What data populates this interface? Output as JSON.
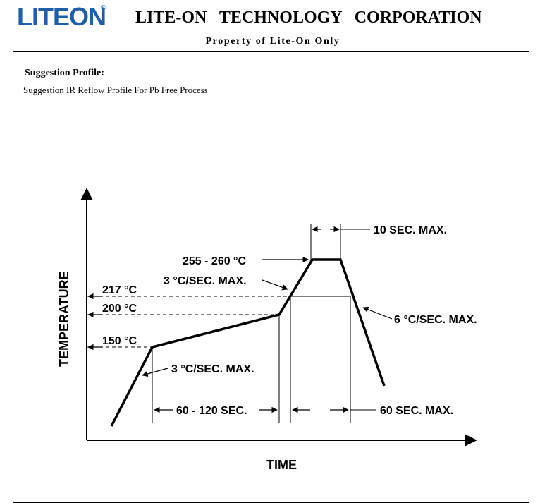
{
  "header": {
    "logo_text": "LITEON",
    "logo_mark": "®",
    "company": "LITE-ON   TECHNOLOGY   CORPORATION",
    "property_line": "Property of Lite-On Only"
  },
  "section": {
    "title": "Suggestion Profile:",
    "subtitle": "Suggestion IR Reflow Profile For Pb Free Process"
  },
  "colors": {
    "logo": "#1f5fa8",
    "lines": "#000000"
  },
  "chart_data": {
    "type": "line",
    "title": "",
    "xlabel": "TIME",
    "ylabel": "TEMPERATURE",
    "temperature_labels": [
      "255 - 260 °C",
      "217 °C",
      "200 °C",
      "150 °C"
    ],
    "annotations": [
      "10 SEC. MAX.",
      "3 °C/SEC. MAX.",
      "6 °C/SEC. MAX.",
      "3 °C/SEC. MAX.",
      "60 - 120 SEC.",
      "60 SEC. MAX."
    ],
    "x_units": "seconds (schematic)",
    "y_units": "°C (schematic)"
  }
}
